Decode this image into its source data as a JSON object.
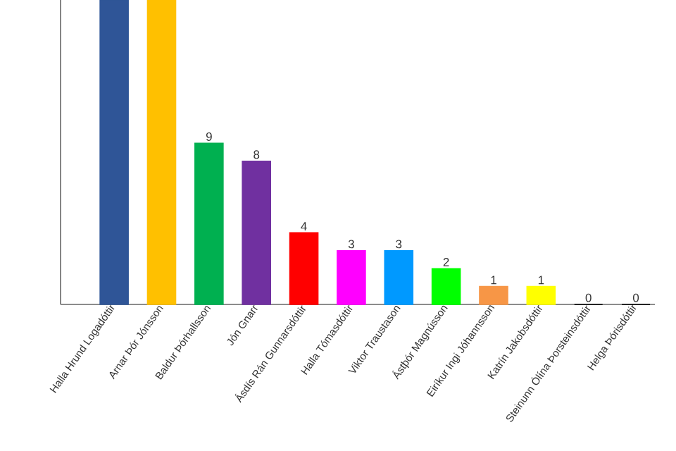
{
  "chart_data": {
    "type": "bar",
    "categories": [
      "Halla Hrund Logadóttir",
      "Arnar Þór Jónsson",
      "Baldur Þórhallsson",
      "Jón Gnarr",
      "Ásdís Rán Gunnarsdóttir",
      "Halla Tómasdóttir",
      "Viktor Traustason",
      "Ástþór Magnússon",
      "Eiríkur Ingi Jóhannsson",
      "Katrín Jakobsdóttir",
      "Steinunn Ólína Þorsteinsdóttir",
      "Helga Þórisdóttir"
    ],
    "values": [
      17,
      17,
      9,
      8,
      4,
      3,
      3,
      2,
      1,
      1,
      0,
      0
    ],
    "value_labels": [
      null,
      null,
      "9",
      "8",
      "4",
      "3",
      "3",
      "2",
      "1",
      "1",
      "0",
      "0"
    ],
    "colors": [
      "#2f5597",
      "#ffc000",
      "#00b050",
      "#7030a0",
      "#ff0000",
      "#ff00ff",
      "#0099ff",
      "#00ff00",
      "#f79646",
      "#ffff00",
      "#000000",
      "#000000"
    ],
    "ylim": [
      0,
      17
    ],
    "tick_labels": "x",
    "grid": false
  }
}
